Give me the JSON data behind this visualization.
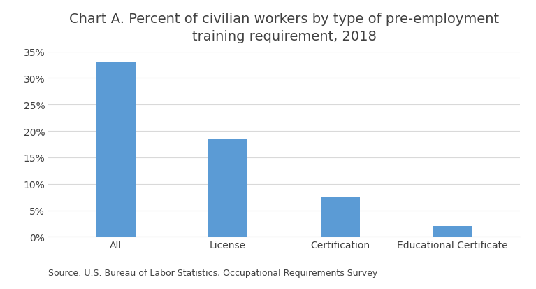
{
  "title": "Chart A. Percent of civilian workers by type of pre-employment\ntraining requirement, 2018",
  "categories": [
    "All",
    "License",
    "Certification",
    "Educational Certificate"
  ],
  "values": [
    33.0,
    18.5,
    7.5,
    2.0
  ],
  "bar_color": "#5B9BD5",
  "ylim": [
    0,
    35
  ],
  "yticks": [
    0,
    5,
    10,
    15,
    20,
    25,
    30,
    35
  ],
  "source_text": "Source: U.S. Bureau of Labor Statistics, Occupational Requirements Survey",
  "title_fontsize": 14,
  "axis_fontsize": 10,
  "source_fontsize": 9,
  "background_color": "#ffffff",
  "grid_color": "#d9d9d9",
  "title_color": "#404040",
  "tick_color": "#404040"
}
